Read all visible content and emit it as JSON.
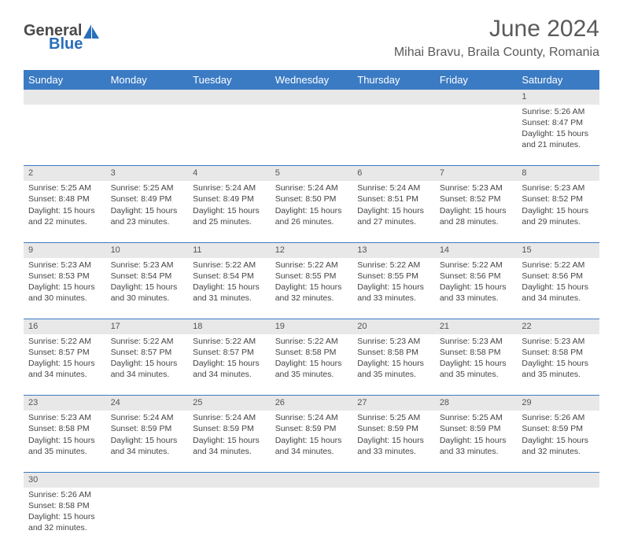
{
  "logo": {
    "general": "General",
    "blue": "Blue"
  },
  "title": "June 2024",
  "location": "Mihai Bravu, Braila County, Romania",
  "day_headers": [
    "Sunday",
    "Monday",
    "Tuesday",
    "Wednesday",
    "Thursday",
    "Friday",
    "Saturday"
  ],
  "colors": {
    "header_bg": "#3b7bc4",
    "daynum_bg": "#e8e8e8",
    "row_border": "#3b7bc4"
  },
  "weeks": [
    [
      null,
      null,
      null,
      null,
      null,
      null,
      {
        "n": "1",
        "sr": "Sunrise: 5:26 AM",
        "ss": "Sunset: 8:47 PM",
        "d1": "Daylight: 15 hours",
        "d2": "and 21 minutes."
      }
    ],
    [
      {
        "n": "2",
        "sr": "Sunrise: 5:25 AM",
        "ss": "Sunset: 8:48 PM",
        "d1": "Daylight: 15 hours",
        "d2": "and 22 minutes."
      },
      {
        "n": "3",
        "sr": "Sunrise: 5:25 AM",
        "ss": "Sunset: 8:49 PM",
        "d1": "Daylight: 15 hours",
        "d2": "and 23 minutes."
      },
      {
        "n": "4",
        "sr": "Sunrise: 5:24 AM",
        "ss": "Sunset: 8:49 PM",
        "d1": "Daylight: 15 hours",
        "d2": "and 25 minutes."
      },
      {
        "n": "5",
        "sr": "Sunrise: 5:24 AM",
        "ss": "Sunset: 8:50 PM",
        "d1": "Daylight: 15 hours",
        "d2": "and 26 minutes."
      },
      {
        "n": "6",
        "sr": "Sunrise: 5:24 AM",
        "ss": "Sunset: 8:51 PM",
        "d1": "Daylight: 15 hours",
        "d2": "and 27 minutes."
      },
      {
        "n": "7",
        "sr": "Sunrise: 5:23 AM",
        "ss": "Sunset: 8:52 PM",
        "d1": "Daylight: 15 hours",
        "d2": "and 28 minutes."
      },
      {
        "n": "8",
        "sr": "Sunrise: 5:23 AM",
        "ss": "Sunset: 8:52 PM",
        "d1": "Daylight: 15 hours",
        "d2": "and 29 minutes."
      }
    ],
    [
      {
        "n": "9",
        "sr": "Sunrise: 5:23 AM",
        "ss": "Sunset: 8:53 PM",
        "d1": "Daylight: 15 hours",
        "d2": "and 30 minutes."
      },
      {
        "n": "10",
        "sr": "Sunrise: 5:23 AM",
        "ss": "Sunset: 8:54 PM",
        "d1": "Daylight: 15 hours",
        "d2": "and 30 minutes."
      },
      {
        "n": "11",
        "sr": "Sunrise: 5:22 AM",
        "ss": "Sunset: 8:54 PM",
        "d1": "Daylight: 15 hours",
        "d2": "and 31 minutes."
      },
      {
        "n": "12",
        "sr": "Sunrise: 5:22 AM",
        "ss": "Sunset: 8:55 PM",
        "d1": "Daylight: 15 hours",
        "d2": "and 32 minutes."
      },
      {
        "n": "13",
        "sr": "Sunrise: 5:22 AM",
        "ss": "Sunset: 8:55 PM",
        "d1": "Daylight: 15 hours",
        "d2": "and 33 minutes."
      },
      {
        "n": "14",
        "sr": "Sunrise: 5:22 AM",
        "ss": "Sunset: 8:56 PM",
        "d1": "Daylight: 15 hours",
        "d2": "and 33 minutes."
      },
      {
        "n": "15",
        "sr": "Sunrise: 5:22 AM",
        "ss": "Sunset: 8:56 PM",
        "d1": "Daylight: 15 hours",
        "d2": "and 34 minutes."
      }
    ],
    [
      {
        "n": "16",
        "sr": "Sunrise: 5:22 AM",
        "ss": "Sunset: 8:57 PM",
        "d1": "Daylight: 15 hours",
        "d2": "and 34 minutes."
      },
      {
        "n": "17",
        "sr": "Sunrise: 5:22 AM",
        "ss": "Sunset: 8:57 PM",
        "d1": "Daylight: 15 hours",
        "d2": "and 34 minutes."
      },
      {
        "n": "18",
        "sr": "Sunrise: 5:22 AM",
        "ss": "Sunset: 8:57 PM",
        "d1": "Daylight: 15 hours",
        "d2": "and 34 minutes."
      },
      {
        "n": "19",
        "sr": "Sunrise: 5:22 AM",
        "ss": "Sunset: 8:58 PM",
        "d1": "Daylight: 15 hours",
        "d2": "and 35 minutes."
      },
      {
        "n": "20",
        "sr": "Sunrise: 5:23 AM",
        "ss": "Sunset: 8:58 PM",
        "d1": "Daylight: 15 hours",
        "d2": "and 35 minutes."
      },
      {
        "n": "21",
        "sr": "Sunrise: 5:23 AM",
        "ss": "Sunset: 8:58 PM",
        "d1": "Daylight: 15 hours",
        "d2": "and 35 minutes."
      },
      {
        "n": "22",
        "sr": "Sunrise: 5:23 AM",
        "ss": "Sunset: 8:58 PM",
        "d1": "Daylight: 15 hours",
        "d2": "and 35 minutes."
      }
    ],
    [
      {
        "n": "23",
        "sr": "Sunrise: 5:23 AM",
        "ss": "Sunset: 8:58 PM",
        "d1": "Daylight: 15 hours",
        "d2": "and 35 minutes."
      },
      {
        "n": "24",
        "sr": "Sunrise: 5:24 AM",
        "ss": "Sunset: 8:59 PM",
        "d1": "Daylight: 15 hours",
        "d2": "and 34 minutes."
      },
      {
        "n": "25",
        "sr": "Sunrise: 5:24 AM",
        "ss": "Sunset: 8:59 PM",
        "d1": "Daylight: 15 hours",
        "d2": "and 34 minutes."
      },
      {
        "n": "26",
        "sr": "Sunrise: 5:24 AM",
        "ss": "Sunset: 8:59 PM",
        "d1": "Daylight: 15 hours",
        "d2": "and 34 minutes."
      },
      {
        "n": "27",
        "sr": "Sunrise: 5:25 AM",
        "ss": "Sunset: 8:59 PM",
        "d1": "Daylight: 15 hours",
        "d2": "and 33 minutes."
      },
      {
        "n": "28",
        "sr": "Sunrise: 5:25 AM",
        "ss": "Sunset: 8:59 PM",
        "d1": "Daylight: 15 hours",
        "d2": "and 33 minutes."
      },
      {
        "n": "29",
        "sr": "Sunrise: 5:26 AM",
        "ss": "Sunset: 8:59 PM",
        "d1": "Daylight: 15 hours",
        "d2": "and 32 minutes."
      }
    ],
    [
      {
        "n": "30",
        "sr": "Sunrise: 5:26 AM",
        "ss": "Sunset: 8:58 PM",
        "d1": "Daylight: 15 hours",
        "d2": "and 32 minutes."
      },
      null,
      null,
      null,
      null,
      null,
      null
    ]
  ]
}
